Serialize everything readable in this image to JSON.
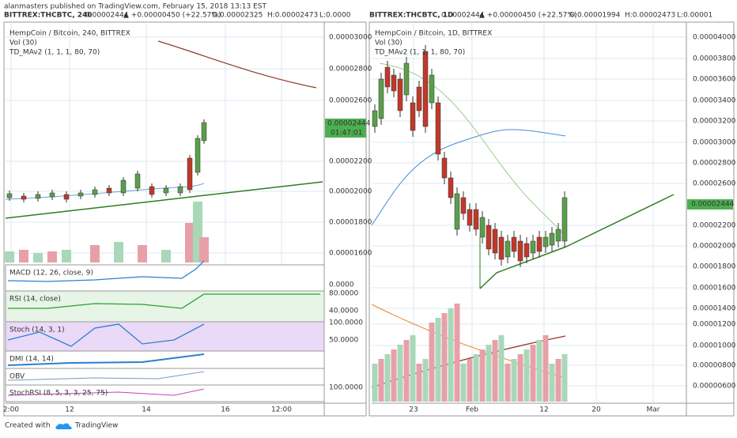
{
  "byline": "alanmasters published on TradingView.com, February 15, 2018 13:13 EST",
  "panels": [
    {
      "symbol": "BITTREX:THCBTC, 240",
      "last": "0.00002444",
      "change": "▲ +0.00000450 (+22.57%)",
      "open": "O:0.00002325",
      "high": "H:0.00002473",
      "low": "L:0.0000",
      "legend": [
        "HempCoin / Bitcoin, 240, BITTREX",
        "Vol (30)",
        "TD_MAv2 (1, 1, 1, 80, 70)"
      ],
      "price_axis": [
        "0.00003000",
        "0.00002800",
        "0.00002600",
        "0.00002200",
        "0.00002000",
        "0.00001800",
        "0.00001600"
      ],
      "price_tag": "0.00002444",
      "countdown": "01:47:01",
      "panes": [
        {
          "name": "MACD (12, 26, close, 9)",
          "axis": [
            "0.0000"
          ]
        },
        {
          "name": "RSI (14, close)",
          "axis": [
            "80.0000",
            "40.0000"
          ]
        },
        {
          "name": "Stoch (14, 3, 1)",
          "axis": [
            "100.0000",
            "50.0000"
          ]
        },
        {
          "name": "DMI (14, 14)",
          "axis": []
        },
        {
          "name": "OBV",
          "axis": []
        },
        {
          "name": "StochRSI (8, 5, 3, 3, 25, 75)",
          "axis": [
            "100.0000"
          ]
        }
      ],
      "time_axis": [
        "2:00",
        "12",
        "14",
        "16",
        "12:00"
      ]
    },
    {
      "symbol": "BITTREX:THCBTC, 1D",
      "last": "0.00002444",
      "change": "▲ +0.00000450 (+22.57%)",
      "open": "O:0.00001994",
      "high": "H:0.00002473",
      "low": "L:0.00001",
      "legend": [
        "HempCoin / Bitcoin, 1D, BITTREX",
        "Vol (30)",
        "TD_MAv2 (1, 1, 1, 80, 70)"
      ],
      "price_axis": [
        "0.00004000",
        "0.00003800",
        "0.00003600",
        "0.00003400",
        "0.00003200",
        "0.00003000",
        "0.00002800",
        "0.00002600",
        "0.00002200",
        "0.00002000",
        "0.00001800",
        "0.00001600",
        "0.00001400",
        "0.00001200",
        "0.00001000",
        "0.00000800",
        "0.00000600"
      ],
      "price_tag": "0.00002444",
      "time_axis": [
        "23",
        "Feb",
        "12",
        "20",
        "Mar"
      ]
    }
  ],
  "footer": {
    "created": "Created with",
    "brand": "TradingView"
  }
}
